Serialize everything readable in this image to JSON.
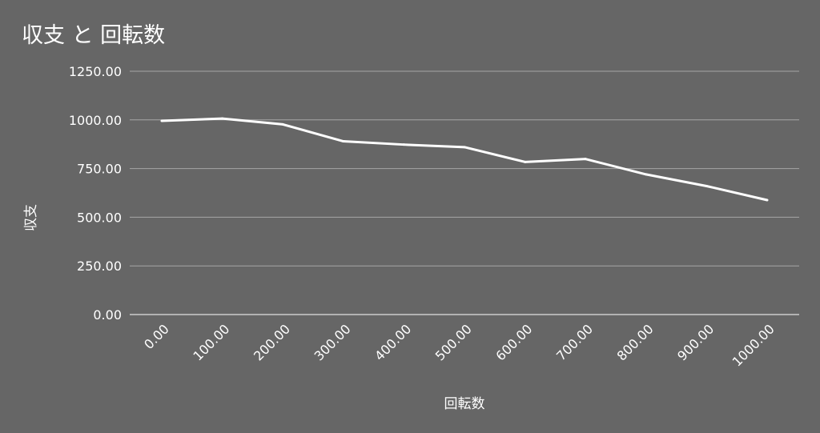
{
  "chart_data": {
    "type": "line",
    "title": "収支 と 回転数",
    "xlabel": "回転数",
    "ylabel": "収支",
    "x": [
      0,
      100,
      200,
      300,
      400,
      500,
      600,
      700,
      800,
      900,
      1000
    ],
    "x_tick_labels": [
      "0.00",
      "100.00",
      "200.00",
      "300.00",
      "400.00",
      "500.00",
      "600.00",
      "700.00",
      "800.00",
      "900.00",
      "1000.00"
    ],
    "series": [
      {
        "values": [
          995,
          1007,
          977,
          890,
          873,
          860,
          784,
          799,
          720,
          660,
          588
        ],
        "color": "#ffffff"
      }
    ],
    "y_ticks": [
      0,
      250,
      500,
      750,
      1000,
      1250
    ],
    "y_tick_labels": [
      "0.00",
      "250.00",
      "500.00",
      "750.00",
      "1000.00",
      "1250.00"
    ],
    "ylim": [
      0,
      1250
    ],
    "grid": true,
    "legend": "none",
    "background": "#666666",
    "gridline_color": "#a6a6a6"
  }
}
